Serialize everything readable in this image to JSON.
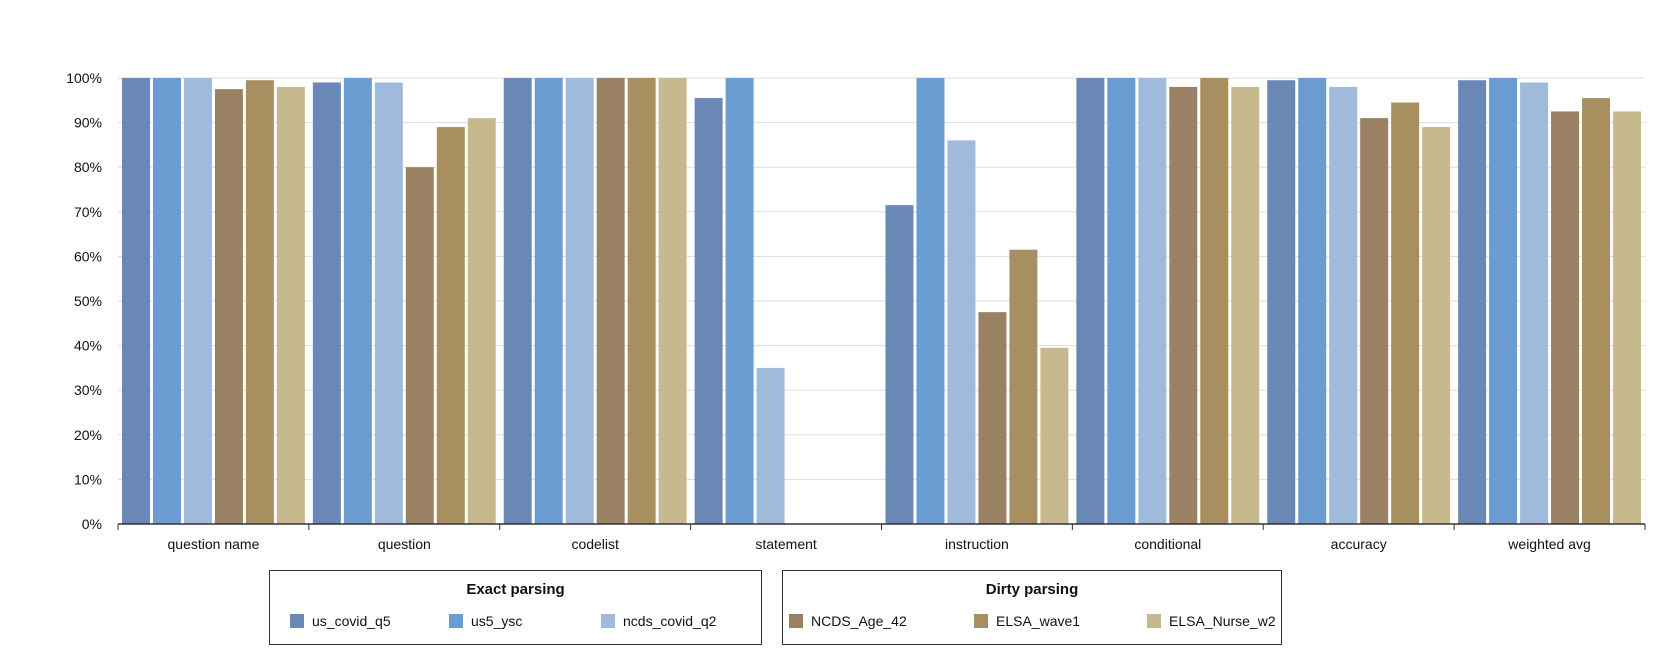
{
  "chart_data": {
    "type": "bar",
    "categories": [
      "question name",
      "question",
      "codelist",
      "statement",
      "instruction",
      "conditional",
      "accuracy",
      "weighted avg"
    ],
    "ylim": [
      0,
      100
    ],
    "yticks": [
      "0%",
      "10%",
      "20%",
      "30%",
      "40%",
      "50%",
      "60%",
      "70%",
      "80%",
      "90%",
      "100%"
    ],
    "grid": true,
    "legend_position": "bottom",
    "series": [
      {
        "name": "us_covid_q5",
        "group": 0,
        "color": "#6988b5",
        "values": [
          100,
          99,
          100,
          95.5,
          71.5,
          100,
          99.5,
          99.5
        ]
      },
      {
        "name": "us5_ysc",
        "group": 0,
        "color": "#6a9bd1",
        "values": [
          100,
          100,
          100,
          100,
          100,
          100,
          100,
          100
        ]
      },
      {
        "name": "ncds_covid_q2",
        "group": 0,
        "color": "#9fbadb",
        "values": [
          100,
          99,
          100,
          35,
          86,
          100,
          98,
          99
        ]
      },
      {
        "name": "NCDS_Age_42",
        "group": 1,
        "color": "#9b8163",
        "values": [
          97.5,
          80,
          100,
          0,
          47.5,
          98,
          91,
          92.5
        ]
      },
      {
        "name": "ELSA_wave1",
        "group": 1,
        "color": "#a88f60",
        "values": [
          99.5,
          89,
          100,
          0,
          61.5,
          100,
          94.5,
          95.5
        ]
      },
      {
        "name": "ELSA_Nurse_w2",
        "group": 1,
        "color": "#c6b98e",
        "values": [
          98,
          91,
          100,
          0,
          39.5,
          98,
          89,
          92.5
        ]
      }
    ],
    "legend_groups": [
      "Exact parsing",
      "Dirty parsing"
    ]
  }
}
